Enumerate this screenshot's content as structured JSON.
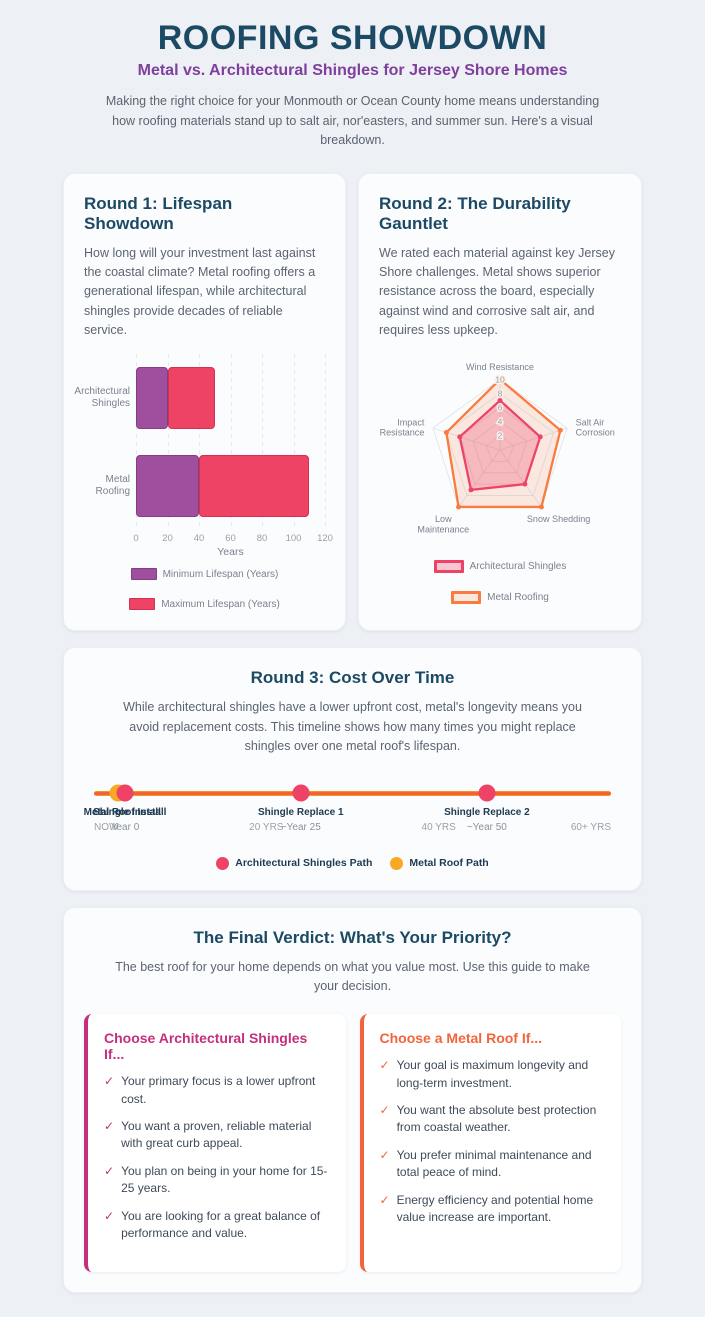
{
  "header": {
    "title": "ROOFING SHOWDOWN",
    "subtitle": "Metal vs. Architectural Shingles for Jersey Shore Homes",
    "intro": "Making the right choice for your Monmouth or Ocean County home means understanding how roofing materials stand up to salt air, nor'easters, and summer sun. Here's a visual breakdown."
  },
  "round1": {
    "title": "Round 1: Lifespan Showdown",
    "description": "How long will your investment last against the coastal climate? Metal roofing offers a generational lifespan, while architectural shingles provide decades of reliable service."
  },
  "round2": {
    "title": "Round 2: The Durability Gauntlet",
    "description": "We rated each material against key Jersey Shore challenges. Metal shows superior resistance across the board, especially against wind and corrosive salt air, and requires less upkeep."
  },
  "round3": {
    "title": "Round 3: Cost Over Time",
    "description": "While architectural shingles have a lower upfront cost, metal's longevity means you avoid replacement costs. This timeline shows how many times you might replace shingles over one metal roof's lifespan."
  },
  "verdict": {
    "title": "The Final Verdict: What's Your Priority?",
    "description": "The best roof for your home depends on what you value most. Use this guide to make your decision.",
    "columns": [
      {
        "title": "Choose Architectural Shingles If...",
        "accent": "#C42F7D",
        "items": [
          "Your primary focus is a lower upfront cost.",
          "You want a proven, reliable material with great curb appeal.",
          "You plan on being in your home for 15-25 years.",
          "You are looking for a great balance of performance and value."
        ]
      },
      {
        "title": "Choose a Metal Roof If...",
        "accent": "#F2653C",
        "items": [
          "Your goal is maximum longevity and long-term investment.",
          "You want the absolute best protection from coastal weather.",
          "You prefer minimal maintenance and total peace of mind.",
          "Energy efficiency and potential home value increase are important."
        ]
      }
    ]
  },
  "chart_data": [
    {
      "type": "bar",
      "orientation": "horizontal",
      "stacked": true,
      "categories": [
        "Architectural Shingles",
        "Metal Roofing"
      ],
      "series": [
        {
          "name": "Minimum Lifespan (Years)",
          "color": "#A04E9E",
          "border": "#843D83",
          "values": [
            20,
            40
          ]
        },
        {
          "name": "Maximum Lifespan (Years)",
          "color": "#EF4365",
          "border": "#D23156",
          "values": [
            50,
            110
          ]
        }
      ],
      "note": "maximum segment is stacked from the minimum value up to the maximum value",
      "xlabel": "Years",
      "xlim": [
        0,
        120
      ],
      "xticks": [
        0,
        20,
        40,
        60,
        80,
        100,
        120
      ]
    },
    {
      "type": "radar",
      "axes": [
        "Wind Resistance",
        "Salt Air Corrosion",
        "Snow Shedding",
        "Low Maintenance",
        "Impact Resistance"
      ],
      "rmax": 10,
      "ticks": [
        2,
        4,
        6,
        8,
        10
      ],
      "series": [
        {
          "name": "Metal Roofing",
          "color": "#F97B3D",
          "fill": "rgba(249,123,61,0.15)",
          "values": [
            10,
            9,
            10,
            10,
            8
          ]
        },
        {
          "name": "Architectural Shingles",
          "color": "#EE4266",
          "fill": "rgba(238,66,102,0.28)",
          "values": [
            7,
            6,
            6,
            7,
            6
          ]
        }
      ],
      "legend_order": [
        "Architectural Shingles",
        "Metal Roofing"
      ]
    },
    {
      "type": "timeline",
      "axis_labels": [
        "NOW",
        "20 YRS",
        "40 YRS",
        "60+ YRS"
      ],
      "series": [
        {
          "name": "Architectural Shingles Path",
          "color": "#EE4266"
        },
        {
          "name": "Metal Roof Path",
          "color": "#F9A825"
        }
      ],
      "events": [
        {
          "labels": [
            "Metal Roof Install",
            "Shingle Install"
          ],
          "sublabel": "Year 0",
          "pos": 6,
          "dots": [
            1,
            0
          ]
        },
        {
          "labels": [
            "Shingle Replace 1"
          ],
          "sublabel": "~Year 25",
          "pos": 40,
          "dots": [
            0
          ]
        },
        {
          "labels": [
            "Shingle Replace 2"
          ],
          "sublabel": "~Year 50",
          "pos": 76,
          "dots": [
            0
          ]
        }
      ]
    }
  ],
  "colors": {
    "heading_navy": "#1C4A64",
    "subtitle_purple": "#7E3F9D",
    "bar_purple": "#A04E9E",
    "pink": "#EE4266",
    "orange": "#F97B3D",
    "amber": "#F9A825",
    "page_bg": "#EDF0F4"
  }
}
